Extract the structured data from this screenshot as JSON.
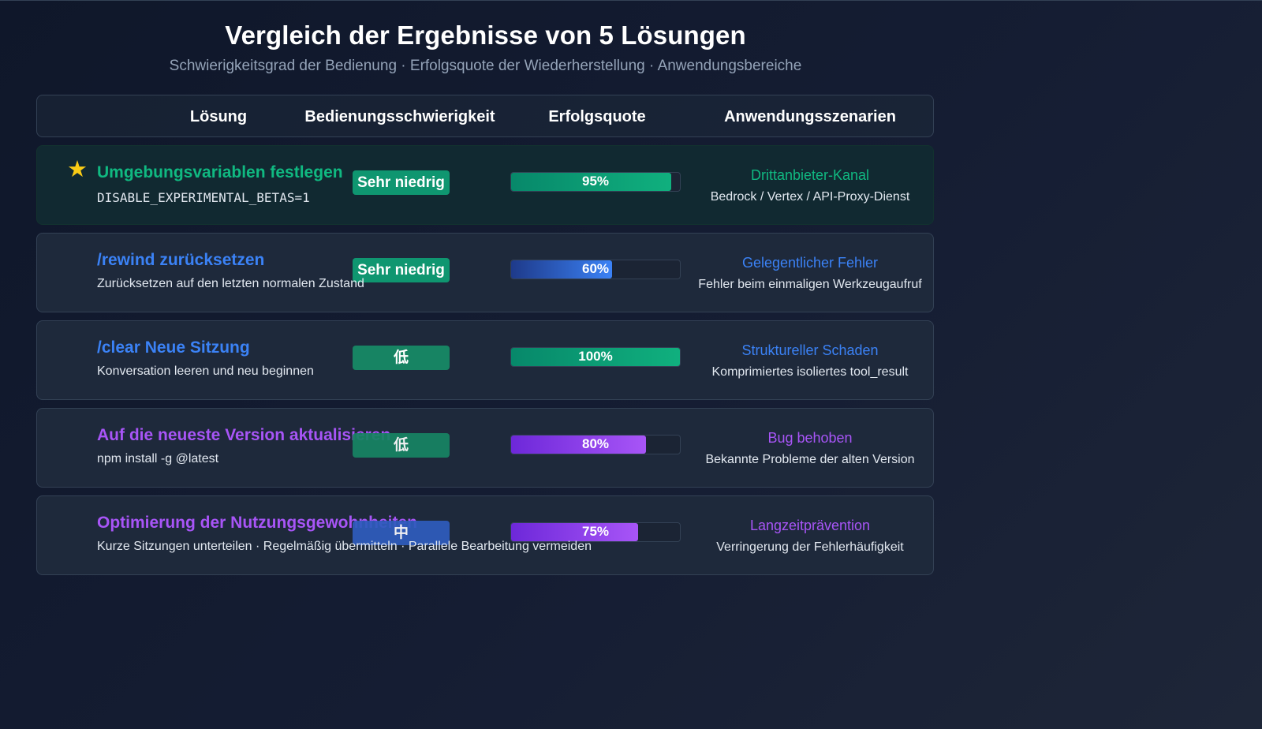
{
  "title": "Vergleich der Ergebnisse von 5 Lösungen",
  "subtitle": "Schwierigkeitsgrad der Bedienung · Erfolgsquote der Wiederherstellung · Anwendungsbereiche",
  "columns": [
    "Lösung",
    "Bedienungsschwierigkeit",
    "Erfolgsquote",
    "Anwendungsszenarien"
  ],
  "colors": {
    "green": "#10b981",
    "blue": "#3b82f6",
    "purple": "#a855f7",
    "star": "#facc15"
  },
  "rows": [
    {
      "icon": "star-icon",
      "name": "Umgebungsvariablen festlegen",
      "desc": "DISABLE_EXPERIMENTAL_BETAS=1",
      "difficulty": "Sehr niedrig",
      "rate": 95,
      "rate_label": "95%",
      "scenario_title": "Drittanbieter-Kanal",
      "scenario_desc": "Bedrock / Vertex / API-Proxy-Dienst",
      "accent": "#10b981"
    },
    {
      "name": "/rewind zurücksetzen",
      "desc": "Zurücksetzen auf den letzten normalen Zustand",
      "difficulty": "Sehr niedrig",
      "rate": 60,
      "rate_label": "60%",
      "scenario_title": "Gelegentlicher Fehler",
      "scenario_desc": "Fehler beim einmaligen Werkzeugaufruf",
      "accent": "#3b82f6"
    },
    {
      "name": "/clear Neue Sitzung",
      "desc": "Konversation leeren und neu beginnen",
      "difficulty": "低",
      "rate": 100,
      "rate_label": "100%",
      "scenario_title": "Struktureller Schaden",
      "scenario_desc": "Komprimiertes isoliertes tool_result",
      "accent": "#3b82f6"
    },
    {
      "name": "Auf die neueste Version aktualisieren",
      "desc": "npm install -g @latest",
      "difficulty": "低",
      "rate": 80,
      "rate_label": "80%",
      "scenario_title": "Bug behoben",
      "scenario_desc": "Bekannte Probleme der alten Version",
      "accent": "#a855f7"
    },
    {
      "name": "Optimierung der Nutzungsgewohnheiten",
      "desc": "Kurze Sitzungen unterteilen · Regelmäßig übermitteln · Parallele Bearbeitung vermeiden",
      "difficulty": "中",
      "rate": 75,
      "rate_label": "75%",
      "scenario_title": "Langzeitprävention",
      "scenario_desc": "Verringerung der Fehlerhäufigkeit",
      "accent": "#a855f7"
    }
  ]
}
